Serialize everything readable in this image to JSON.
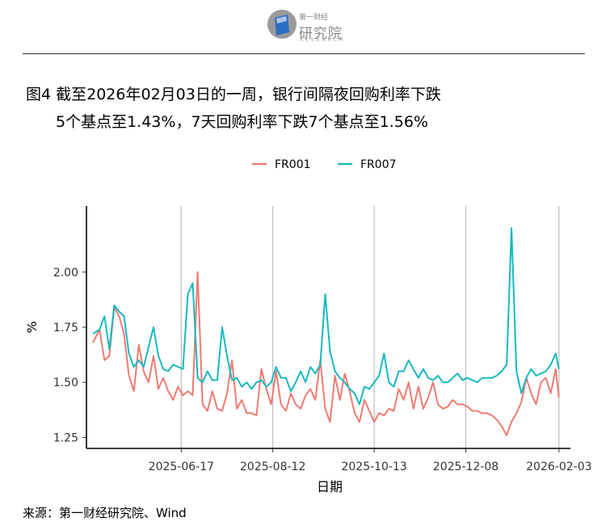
{
  "header": {
    "logo_top_text": "第一财经",
    "logo_cn_text": "研究院",
    "logo_en_text": "RESEARCH"
  },
  "figure": {
    "title_line1": "图4  截至2026年02月03日的一周，银行间隔夜回购利率下跌",
    "title_line2": "5个基点至1.43%，7天回购利率下跌7个基点至1.56%",
    "source": "来源：第一财经研究院、Wind"
  },
  "colors": {
    "FR001": "#f07b72",
    "FR007": "#17b9c0"
  },
  "chart_data": {
    "type": "line",
    "xlabel": "日期",
    "ylabel": "%",
    "ylim": [
      1.2,
      2.3
    ],
    "yticks": [
      1.25,
      1.5,
      1.75,
      2.0
    ],
    "ytick_labels": [
      "1.25",
      "1.50",
      "1.75",
      "2.00"
    ],
    "xlim": [
      "2025-04-20",
      "2026-02-10"
    ],
    "xticks": [
      "2025-06-17",
      "2025-08-12",
      "2025-10-13",
      "2025-12-08",
      "2026-02-03"
    ],
    "grid": "vertical",
    "legend": "top",
    "x": [
      "2025-04-24",
      "2025-04-28",
      "2025-05-01",
      "2025-05-04",
      "2025-05-07",
      "2025-05-10",
      "2025-05-13",
      "2025-05-16",
      "2025-05-19",
      "2025-05-22",
      "2025-05-25",
      "2025-05-28",
      "2025-05-31",
      "2025-06-03",
      "2025-06-06",
      "2025-06-09",
      "2025-06-12",
      "2025-06-15",
      "2025-06-18",
      "2025-06-21",
      "2025-06-24",
      "2025-06-27",
      "2025-06-30",
      "2025-07-03",
      "2025-07-06",
      "2025-07-09",
      "2025-07-12",
      "2025-07-15",
      "2025-07-18",
      "2025-07-21",
      "2025-07-24",
      "2025-07-27",
      "2025-07-30",
      "2025-08-02",
      "2025-08-05",
      "2025-08-08",
      "2025-08-11",
      "2025-08-14",
      "2025-08-17",
      "2025-08-20",
      "2025-08-23",
      "2025-08-26",
      "2025-08-29",
      "2025-09-01",
      "2025-09-04",
      "2025-09-07",
      "2025-09-10",
      "2025-09-13",
      "2025-09-16",
      "2025-09-19",
      "2025-09-22",
      "2025-09-25",
      "2025-09-28",
      "2025-10-01",
      "2025-10-04",
      "2025-10-07",
      "2025-10-10",
      "2025-10-13",
      "2025-10-16",
      "2025-10-19",
      "2025-10-22",
      "2025-10-25",
      "2025-10-28",
      "2025-10-31",
      "2025-11-03",
      "2025-11-06",
      "2025-11-09",
      "2025-11-12",
      "2025-11-15",
      "2025-11-18",
      "2025-11-21",
      "2025-11-24",
      "2025-11-27",
      "2025-11-30",
      "2025-12-03",
      "2025-12-06",
      "2025-12-09",
      "2025-12-12",
      "2025-12-15",
      "2025-12-18",
      "2025-12-21",
      "2025-12-24",
      "2025-12-27",
      "2025-12-30",
      "2026-01-02",
      "2026-01-05",
      "2026-01-08",
      "2026-01-11",
      "2026-01-14",
      "2026-01-17",
      "2026-01-20",
      "2026-01-23",
      "2026-01-26",
      "2026-01-29",
      "2026-02-01",
      "2026-02-03"
    ],
    "series": [
      {
        "name": "FR001",
        "values": [
          1.68,
          1.74,
          1.6,
          1.62,
          1.84,
          1.8,
          1.72,
          1.53,
          1.46,
          1.67,
          1.55,
          1.5,
          1.62,
          1.47,
          1.52,
          1.46,
          1.42,
          1.48,
          1.44,
          1.46,
          1.44,
          2.0,
          1.4,
          1.37,
          1.46,
          1.38,
          1.37,
          1.45,
          1.6,
          1.38,
          1.42,
          1.36,
          1.36,
          1.35,
          1.56,
          1.47,
          1.4,
          1.55,
          1.4,
          1.37,
          1.45,
          1.4,
          1.38,
          1.44,
          1.47,
          1.42,
          1.6,
          1.38,
          1.32,
          1.53,
          1.42,
          1.54,
          1.46,
          1.36,
          1.32,
          1.42,
          1.37,
          1.32,
          1.36,
          1.35,
          1.38,
          1.37,
          1.47,
          1.42,
          1.5,
          1.38,
          1.48,
          1.38,
          1.43,
          1.5,
          1.4,
          1.38,
          1.39,
          1.42,
          1.4,
          1.4,
          1.39,
          1.37,
          1.37,
          1.36,
          1.36,
          1.35,
          1.33,
          1.3,
          1.26,
          1.32,
          1.36,
          1.41,
          1.52,
          1.45,
          1.4,
          1.5,
          1.52,
          1.45,
          1.56,
          1.43
        ]
      },
      {
        "name": "FR007",
        "values": [
          1.72,
          1.74,
          1.8,
          1.65,
          1.85,
          1.82,
          1.8,
          1.63,
          1.57,
          1.6,
          1.57,
          1.66,
          1.75,
          1.62,
          1.56,
          1.55,
          1.58,
          1.57,
          1.56,
          1.9,
          1.95,
          1.52,
          1.5,
          1.55,
          1.51,
          1.51,
          1.75,
          1.62,
          1.51,
          1.52,
          1.48,
          1.5,
          1.47,
          1.5,
          1.51,
          1.48,
          1.5,
          1.57,
          1.52,
          1.52,
          1.46,
          1.5,
          1.55,
          1.5,
          1.57,
          1.54,
          1.58,
          1.9,
          1.64,
          1.55,
          1.52,
          1.5,
          1.47,
          1.45,
          1.4,
          1.48,
          1.47,
          1.5,
          1.53,
          1.63,
          1.5,
          1.48,
          1.55,
          1.55,
          1.6,
          1.56,
          1.52,
          1.56,
          1.52,
          1.51,
          1.53,
          1.5,
          1.5,
          1.52,
          1.54,
          1.51,
          1.52,
          1.51,
          1.5,
          1.52,
          1.52,
          1.52,
          1.53,
          1.55,
          1.58,
          2.2,
          1.55,
          1.45,
          1.52,
          1.56,
          1.53,
          1.54,
          1.55,
          1.58,
          1.63,
          1.56
        ]
      }
    ]
  }
}
